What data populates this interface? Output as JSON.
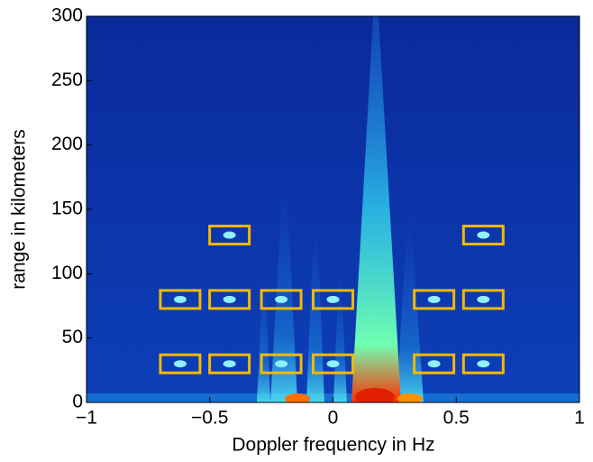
{
  "chart_data": {
    "type": "heatmap",
    "xlabel": "Doppler frequency in Hz",
    "ylabel": "range in kilometers",
    "xlim": [
      -1,
      1
    ],
    "ylim": [
      0,
      300
    ],
    "xticks": [
      {
        "value": -1,
        "label": "−1"
      },
      {
        "value": -0.5,
        "label": "−0.5"
      },
      0,
      0.5,
      1
    ],
    "yticks": [
      0,
      50,
      100,
      150,
      200,
      250,
      300
    ],
    "box_color": "#f5b800",
    "boxes": {
      "x": [
        -0.62,
        -0.42,
        -0.21,
        0,
        0.41,
        0.61,
        -0.62,
        -0.42,
        -0.21,
        0,
        0.41,
        0.61,
        -0.42,
        0.61
      ],
      "y": [
        30,
        30,
        30,
        30,
        30,
        30,
        80,
        80,
        80,
        80,
        80,
        80,
        130,
        130
      ]
    }
  }
}
